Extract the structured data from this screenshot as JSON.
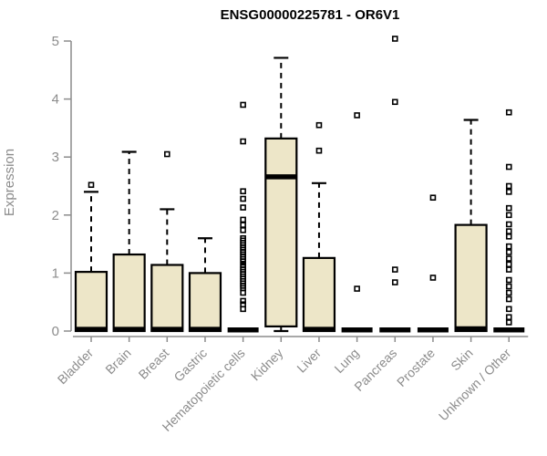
{
  "window": {
    "title": "ENSG00000225781 - OR6V1"
  },
  "colors": {
    "box_fill": "#EDE6C8",
    "box_stroke": "#000000",
    "axis_gray": "#8C8C8C",
    "label_gray": "#8C8C8C",
    "title_color": "#000000",
    "background": "#FFFFFF"
  },
  "chart_data": {
    "type": "boxplot",
    "title": "ENSG00000225781 - OR6V1",
    "xlabel": "",
    "ylabel": "Expression",
    "ylim": [
      0,
      5
    ],
    "yticks": [
      0,
      1,
      2,
      3,
      4,
      5
    ],
    "grid": "off",
    "legend": "none",
    "categories": [
      "Bladder",
      "Brain",
      "Breast",
      "Gastric",
      "Hematopoietic cells",
      "Kidney",
      "Liver",
      "Lung",
      "Pancreas",
      "Prostate",
      "Skin",
      "Unknown / Other"
    ],
    "series": [
      {
        "category": "Bladder",
        "whisker_low": 0,
        "q1": 0,
        "median": 0.03,
        "q3": 1.02,
        "whisker_high": 2.4,
        "outliers": [
          2.52
        ]
      },
      {
        "category": "Brain",
        "whisker_low": 0,
        "q1": 0,
        "median": 0.03,
        "q3": 1.32,
        "whisker_high": 3.09,
        "outliers": []
      },
      {
        "category": "Breast",
        "whisker_low": 0,
        "q1": 0,
        "median": 0.03,
        "q3": 1.14,
        "whisker_high": 2.1,
        "outliers": [
          3.05
        ]
      },
      {
        "category": "Gastric",
        "whisker_low": 0,
        "q1": 0,
        "median": 0.03,
        "q3": 1.0,
        "whisker_high": 1.6,
        "outliers": []
      },
      {
        "category": "Hematopoietic cells",
        "whisker_low": 0,
        "q1": 0,
        "median": 0.02,
        "q3": 0.04,
        "whisker_high": 0.04,
        "outliers": [
          3.9,
          3.27,
          2.41,
          2.28,
          2.13,
          1.92,
          1.83,
          1.74,
          1.6,
          1.56,
          1.52,
          1.48,
          1.44,
          1.4,
          1.36,
          1.32,
          1.28,
          1.24,
          1.2,
          1.14,
          1.1,
          1.06,
          1.02,
          0.98,
          0.94,
          0.9,
          0.86,
          0.82,
          0.78,
          0.74,
          0.66,
          0.52,
          0.46,
          0.38
        ]
      },
      {
        "category": "Kidney",
        "whisker_low": 0,
        "q1": 0.08,
        "median": 2.66,
        "q3": 3.32,
        "whisker_high": 4.71,
        "outliers": []
      },
      {
        "category": "Liver",
        "whisker_low": 0,
        "q1": 0,
        "median": 0.03,
        "q3": 1.26,
        "whisker_high": 2.55,
        "outliers": [
          3.55,
          3.11
        ]
      },
      {
        "category": "Lung",
        "whisker_low": 0,
        "q1": 0,
        "median": 0.02,
        "q3": 0.04,
        "whisker_high": 0.04,
        "outliers": [
          3.72,
          0.73
        ]
      },
      {
        "category": "Pancreas",
        "whisker_low": 0,
        "q1": 0,
        "median": 0.02,
        "q3": 0.04,
        "whisker_high": 0.04,
        "outliers": [
          5.04,
          3.95,
          1.06,
          0.84
        ]
      },
      {
        "category": "Prostate",
        "whisker_low": 0,
        "q1": 0,
        "median": 0.02,
        "q3": 0.04,
        "whisker_high": 0.04,
        "outliers": [
          2.3,
          0.92
        ]
      },
      {
        "category": "Skin",
        "whisker_low": 0,
        "q1": 0,
        "median": 0.04,
        "q3": 1.83,
        "whisker_high": 3.64,
        "outliers": []
      },
      {
        "category": "Unknown / Other",
        "whisker_low": 0,
        "q1": 0,
        "median": 0.02,
        "q3": 0.04,
        "whisker_high": 0.04,
        "outliers": [
          3.77,
          2.83,
          2.5,
          2.4,
          2.12,
          2.0,
          1.84,
          1.72,
          1.63,
          1.46,
          1.36,
          1.25,
          1.15,
          1.06,
          0.88,
          0.77,
          0.66,
          0.55,
          0.38,
          0.24,
          0.15
        ]
      }
    ]
  }
}
